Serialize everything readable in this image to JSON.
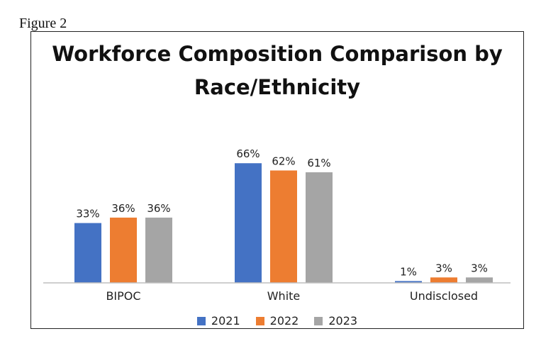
{
  "figure_label": "Figure 2",
  "chart_data": {
    "type": "bar",
    "title": "Workforce Composition Comparison by Race/Ethnicity",
    "title_lines": [
      "Workforce Composition Comparison by",
      "Race/Ethnicity"
    ],
    "categories": [
      "BIPOC",
      "White",
      "Undisclosed"
    ],
    "series": [
      {
        "name": "2021",
        "color": "#4472C4",
        "values": [
          33,
          66,
          1
        ]
      },
      {
        "name": "2022",
        "color": "#ED7D31",
        "values": [
          36,
          62,
          3
        ]
      },
      {
        "name": "2023",
        "color": "#A5A5A5",
        "values": [
          36,
          61,
          3
        ]
      }
    ],
    "data_labels": [
      [
        "33%",
        "66%",
        "1%"
      ],
      [
        "36%",
        "62%",
        "3%"
      ],
      [
        "36%",
        "61%",
        "3%"
      ]
    ],
    "xlabel": "",
    "ylabel": "",
    "ylim": [
      0,
      70
    ],
    "grid": false,
    "legend_position": "bottom"
  }
}
